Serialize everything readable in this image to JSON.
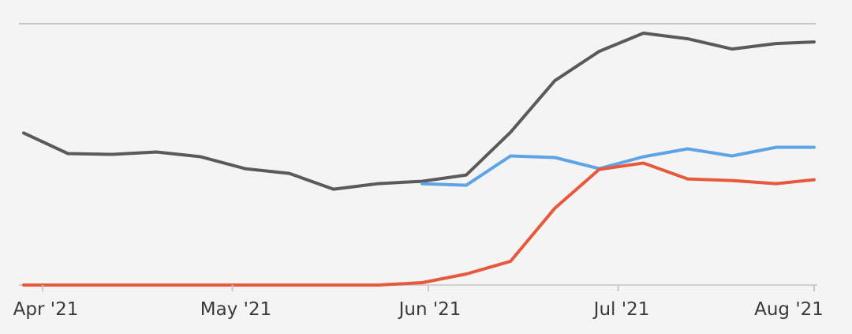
{
  "chart_data": {
    "type": "line",
    "x_ticks": [
      "Apr '21",
      "May '21",
      "Jun '21",
      "Jul '21",
      "Aug '21"
    ],
    "x_range": [
      "2021-03-29",
      "2021-08-01"
    ],
    "ylim": [
      0,
      330
    ],
    "grid": false,
    "series": [
      {
        "color": "#5a5a5a",
        "points": [
          {
            "x": "2021-03-29",
            "y": 192
          },
          {
            "x": "2021-04-05",
            "y": 166
          },
          {
            "x": "2021-04-12",
            "y": 165
          },
          {
            "x": "2021-04-19",
            "y": 168
          },
          {
            "x": "2021-04-26",
            "y": 162
          },
          {
            "x": "2021-05-03",
            "y": 147
          },
          {
            "x": "2021-05-10",
            "y": 141
          },
          {
            "x": "2021-05-17",
            "y": 121
          },
          {
            "x": "2021-05-24",
            "y": 128
          },
          {
            "x": "2021-05-31",
            "y": 131
          },
          {
            "x": "2021-06-07",
            "y": 139
          },
          {
            "x": "2021-06-14",
            "y": 193
          },
          {
            "x": "2021-06-21",
            "y": 258
          },
          {
            "x": "2021-06-28",
            "y": 295
          },
          {
            "x": "2021-07-05",
            "y": 318
          },
          {
            "x": "2021-07-12",
            "y": 311
          },
          {
            "x": "2021-07-19",
            "y": 298
          },
          {
            "x": "2021-07-26",
            "y": 305
          },
          {
            "x": "2021-08-01",
            "y": 307
          }
        ]
      },
      {
        "color": "#5da4e6",
        "points": [
          {
            "x": "2021-05-31",
            "y": 128
          },
          {
            "x": "2021-06-07",
            "y": 126
          },
          {
            "x": "2021-06-14",
            "y": 163
          },
          {
            "x": "2021-06-21",
            "y": 161
          },
          {
            "x": "2021-06-28",
            "y": 147
          },
          {
            "x": "2021-07-05",
            "y": 162
          },
          {
            "x": "2021-07-12",
            "y": 172
          },
          {
            "x": "2021-07-19",
            "y": 163
          },
          {
            "x": "2021-07-26",
            "y": 174
          },
          {
            "x": "2021-08-01",
            "y": 174
          }
        ]
      },
      {
        "color": "#e8583c",
        "points": [
          {
            "x": "2021-03-29",
            "y": 0
          },
          {
            "x": "2021-04-05",
            "y": 0
          },
          {
            "x": "2021-04-12",
            "y": 0
          },
          {
            "x": "2021-04-19",
            "y": 0
          },
          {
            "x": "2021-04-26",
            "y": 0
          },
          {
            "x": "2021-05-03",
            "y": 0
          },
          {
            "x": "2021-05-10",
            "y": 0
          },
          {
            "x": "2021-05-17",
            "y": 0
          },
          {
            "x": "2021-05-24",
            "y": 0
          },
          {
            "x": "2021-05-31",
            "y": 3
          },
          {
            "x": "2021-06-07",
            "y": 14
          },
          {
            "x": "2021-06-14",
            "y": 30
          },
          {
            "x": "2021-06-21",
            "y": 97
          },
          {
            "x": "2021-06-28",
            "y": 146
          },
          {
            "x": "2021-07-05",
            "y": 154
          },
          {
            "x": "2021-07-12",
            "y": 134
          },
          {
            "x": "2021-07-19",
            "y": 132
          },
          {
            "x": "2021-07-26",
            "y": 128
          },
          {
            "x": "2021-08-01",
            "y": 133
          }
        ]
      }
    ]
  }
}
